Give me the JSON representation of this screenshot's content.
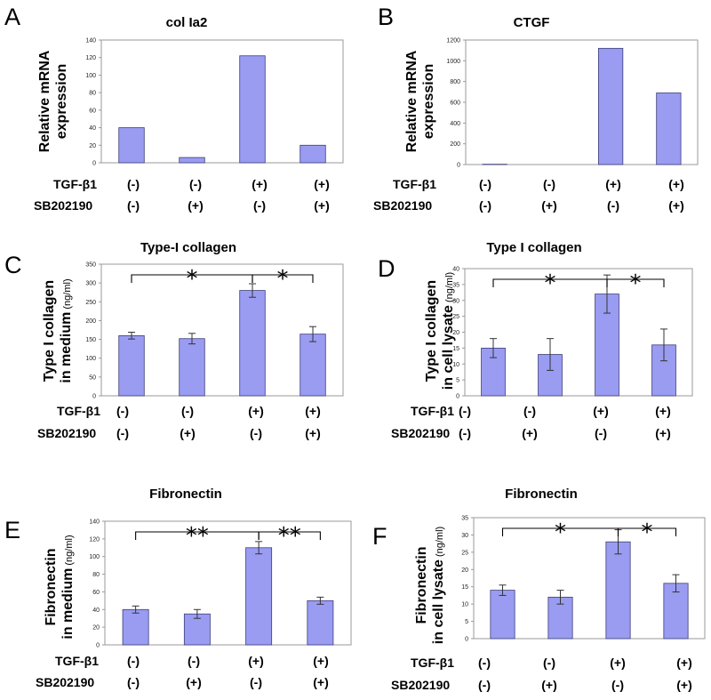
{
  "colors": {
    "bar": "#9a9cf2",
    "bar_stroke": "#3c3c78",
    "frame": "#9a9a9a",
    "err": "#333333"
  },
  "conditions": {
    "row1_label": "TGF-β1",
    "row2_label": "SB202190",
    "row1": [
      "(-)",
      "(-)",
      "(+)",
      "(+)"
    ],
    "row2": [
      "(-)",
      "(+)",
      "(-)",
      "(+)"
    ]
  },
  "chart_data": [
    {
      "panel": "A",
      "type": "bar",
      "title": "col Ia2",
      "ylabel": [
        "Relative mRNA",
        "expression"
      ],
      "yunit": "",
      "ylim": [
        0,
        140
      ],
      "yticks": [
        0,
        20,
        40,
        60,
        80,
        100,
        120,
        140
      ],
      "values": [
        40,
        6,
        122,
        20
      ],
      "errors": null,
      "significance": []
    },
    {
      "panel": "B",
      "type": "bar",
      "title": "CTGF",
      "ylabel": [
        "Relative mRNA",
        "expression"
      ],
      "yunit": "",
      "ylim": [
        0,
        1200
      ],
      "yticks": [
        0,
        200,
        400,
        600,
        800,
        1000,
        1200
      ],
      "values": [
        3,
        0,
        1120,
        690
      ],
      "errors": null,
      "significance": []
    },
    {
      "panel": "C",
      "type": "bar",
      "title": "Type-I collagen",
      "ylabel": [
        "Type I collagen",
        "in medium"
      ],
      "yunit": "(ng/ml)",
      "ylim": [
        0,
        350
      ],
      "yticks": [
        0,
        50,
        100,
        150,
        200,
        250,
        300,
        350
      ],
      "values": [
        160,
        152,
        280,
        164
      ],
      "errors": [
        9,
        14,
        18,
        20
      ],
      "significance": [
        {
          "from": 0,
          "to": 2,
          "mark": "*"
        },
        {
          "from": 2,
          "to": 3,
          "mark": "*"
        }
      ]
    },
    {
      "panel": "D",
      "type": "bar",
      "title": "Type I collagen",
      "ylabel": [
        "Type I collagen",
        "in cell lysate"
      ],
      "yunit": "(ng/ml)",
      "ylim": [
        0,
        40
      ],
      "yticks": [
        0,
        5,
        10,
        15,
        20,
        25,
        30,
        35,
        40
      ],
      "values": [
        15,
        13,
        32,
        16
      ],
      "errors": [
        3,
        5,
        6,
        5
      ],
      "significance": [
        {
          "from": 0,
          "to": 2,
          "mark": "*"
        },
        {
          "from": 2,
          "to": 3,
          "mark": "*"
        }
      ]
    },
    {
      "panel": "E",
      "type": "bar",
      "title": "Fibronectin",
      "ylabel": [
        "Fibronectin",
        "in medium"
      ],
      "yunit": "(ng/ml)",
      "ylim": [
        0,
        140
      ],
      "yticks": [
        0,
        20,
        40,
        60,
        80,
        100,
        120,
        140
      ],
      "values": [
        40,
        35,
        110,
        50
      ],
      "errors": [
        4,
        5,
        7,
        4
      ],
      "significance": [
        {
          "from": 0,
          "to": 2,
          "mark": "**"
        },
        {
          "from": 2,
          "to": 3,
          "mark": "**"
        }
      ]
    },
    {
      "panel": "F",
      "type": "bar",
      "title": "Fibronectin",
      "ylabel": [
        "Fibronectin",
        "in cell lysate"
      ],
      "yunit": "(ng/ml)",
      "ylim": [
        0,
        35
      ],
      "yticks": [
        0,
        5,
        10,
        15,
        20,
        25,
        30,
        35
      ],
      "values": [
        14,
        12,
        28,
        16
      ],
      "errors": [
        1.5,
        2,
        3.5,
        2.5
      ],
      "significance": [
        {
          "from": 0,
          "to": 2,
          "mark": "*"
        },
        {
          "from": 2,
          "to": 3,
          "mark": "*"
        }
      ]
    }
  ]
}
